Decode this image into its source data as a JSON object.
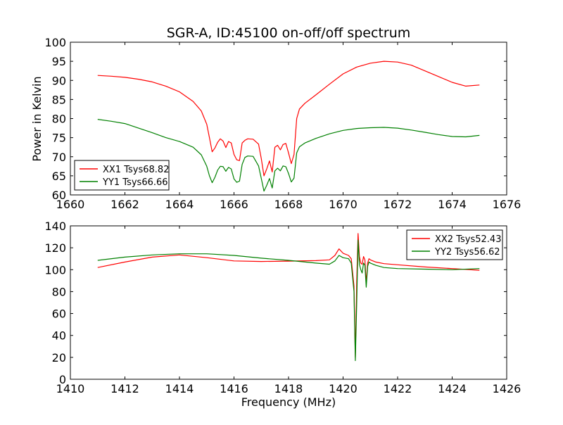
{
  "title": "SGR-A, ID:45100 on-off/off spectrum",
  "ylabel": "Power in Kelvin",
  "xlabel": "Frequency (MHz)",
  "chart_data": [
    {
      "type": "line",
      "title": "SGR-A, ID:45100 on-off/off spectrum",
      "xlabel": "",
      "ylabel": "Power in Kelvin",
      "xlim": [
        1660,
        1676
      ],
      "ylim": [
        60,
        100
      ],
      "xticks": [
        1660,
        1662,
        1664,
        1666,
        1668,
        1670,
        1672,
        1674,
        1676
      ],
      "yticks": [
        60,
        65,
        70,
        75,
        80,
        85,
        90,
        95,
        100
      ],
      "legend": "lower-left",
      "grid": false,
      "series": [
        {
          "name": "XX1 Tsys68.82",
          "color": "#ff0000",
          "x": [
            1661.0,
            1661.5,
            1662.0,
            1662.5,
            1663.0,
            1663.5,
            1664.0,
            1664.5,
            1664.8,
            1665.0,
            1665.1,
            1665.2,
            1665.3,
            1665.4,
            1665.5,
            1665.6,
            1665.7,
            1665.8,
            1665.9,
            1666.0,
            1666.1,
            1666.2,
            1666.3,
            1666.4,
            1666.5,
            1666.7,
            1666.9,
            1667.0,
            1667.1,
            1667.2,
            1667.3,
            1667.4,
            1667.5,
            1667.6,
            1667.7,
            1667.8,
            1667.9,
            1668.0,
            1668.1,
            1668.2,
            1668.3,
            1668.4,
            1668.6,
            1669.0,
            1669.5,
            1670.0,
            1670.5,
            1671.0,
            1671.5,
            1672.0,
            1672.5,
            1673.0,
            1673.5,
            1674.0,
            1674.5,
            1675.0
          ],
          "values": [
            91.3,
            91.1,
            90.8,
            90.3,
            89.6,
            88.5,
            87.0,
            84.5,
            82.0,
            78.5,
            75.0,
            71.3,
            72.3,
            73.8,
            74.7,
            74.1,
            72.4,
            74.0,
            73.6,
            70.6,
            69.2,
            69.0,
            73.6,
            74.3,
            74.7,
            74.6,
            73.3,
            69.5,
            65.0,
            66.8,
            68.9,
            66.0,
            72.5,
            73.0,
            71.8,
            73.2,
            73.5,
            71.0,
            68.2,
            70.6,
            80.0,
            82.5,
            84.0,
            86.2,
            89.0,
            91.7,
            93.5,
            94.5,
            95.0,
            94.8,
            94.0,
            92.5,
            91.0,
            89.5,
            88.5,
            88.8
          ]
        },
        {
          "name": "YY1 Tsys66.66",
          "color": "#008000",
          "x": [
            1661.0,
            1661.5,
            1662.0,
            1662.5,
            1663.0,
            1663.5,
            1664.0,
            1664.5,
            1664.8,
            1665.0,
            1665.1,
            1665.2,
            1665.3,
            1665.4,
            1665.5,
            1665.6,
            1665.7,
            1665.8,
            1665.9,
            1666.0,
            1666.1,
            1666.2,
            1666.3,
            1666.4,
            1666.5,
            1666.7,
            1666.9,
            1667.0,
            1667.1,
            1667.2,
            1667.3,
            1667.4,
            1667.5,
            1667.6,
            1667.7,
            1667.8,
            1667.9,
            1668.0,
            1668.1,
            1668.2,
            1668.3,
            1668.4,
            1668.6,
            1669.0,
            1669.5,
            1670.0,
            1670.5,
            1671.0,
            1671.5,
            1672.0,
            1672.5,
            1673.0,
            1673.5,
            1674.0,
            1674.5,
            1675.0
          ],
          "values": [
            79.8,
            79.3,
            78.7,
            77.5,
            76.3,
            75.0,
            74.0,
            72.5,
            70.5,
            67.5,
            65.0,
            63.2,
            64.6,
            66.5,
            67.5,
            67.4,
            66.2,
            67.2,
            66.8,
            64.2,
            63.3,
            63.6,
            68.0,
            69.8,
            70.2,
            70.1,
            67.6,
            64.3,
            61.0,
            62.5,
            64.3,
            61.8,
            66.3,
            67.0,
            66.3,
            67.6,
            67.4,
            65.6,
            63.4,
            64.4,
            71.0,
            72.6,
            73.6,
            74.8,
            76.0,
            76.9,
            77.4,
            77.6,
            77.7,
            77.5,
            77.0,
            76.4,
            75.8,
            75.3,
            75.2,
            75.6
          ]
        }
      ]
    },
    {
      "type": "line",
      "title": "",
      "xlabel": "Frequency (MHz)",
      "ylabel": "",
      "xlim": [
        1410,
        1426
      ],
      "ylim": [
        0,
        140
      ],
      "xticks": [
        1410,
        1412,
        1414,
        1416,
        1418,
        1420,
        1422,
        1424,
        1426
      ],
      "yticks": [
        0,
        20,
        40,
        60,
        80,
        100,
        120,
        140
      ],
      "legend": "top-right",
      "grid": false,
      "series": [
        {
          "name": "XX2 Tsys52.43",
          "color": "#ff0000",
          "x": [
            1411.0,
            1412.0,
            1413.0,
            1414.0,
            1415.0,
            1416.0,
            1417.0,
            1418.0,
            1419.0,
            1419.5,
            1419.7,
            1419.85,
            1420.0,
            1420.2,
            1420.3,
            1420.4,
            1420.45,
            1420.5,
            1420.55,
            1420.6,
            1420.65,
            1420.7,
            1420.75,
            1420.8,
            1420.85,
            1420.9,
            1420.95,
            1421.0,
            1421.2,
            1421.5,
            1422.0,
            1423.0,
            1424.0,
            1425.0
          ],
          "values": [
            102,
            107,
            111.5,
            113.5,
            111,
            108,
            107.5,
            107.8,
            108.3,
            109,
            113,
            119,
            115,
            113,
            110,
            85,
            20,
            90,
            133,
            112,
            106,
            105,
            112,
            109,
            88,
            106,
            110,
            109,
            107,
            105.5,
            104.5,
            102.5,
            101,
            99.5
          ]
        },
        {
          "name": "YY2 Tsys56.62",
          "color": "#008000",
          "x": [
            1411.0,
            1412.0,
            1413.0,
            1414.0,
            1415.0,
            1416.0,
            1417.0,
            1418.0,
            1419.0,
            1419.5,
            1419.7,
            1419.85,
            1420.0,
            1420.2,
            1420.3,
            1420.4,
            1420.45,
            1420.5,
            1420.55,
            1420.6,
            1420.65,
            1420.7,
            1420.75,
            1420.8,
            1420.85,
            1420.9,
            1420.95,
            1421.0,
            1421.2,
            1421.5,
            1422.0,
            1423.0,
            1424.0,
            1425.0
          ],
          "values": [
            108.5,
            111.5,
            113.5,
            114.5,
            114.5,
            113,
            110.5,
            108.5,
            106,
            105,
            108,
            113,
            111,
            110,
            106,
            80,
            17,
            70,
            127,
            105,
            100,
            97,
            106,
            104,
            84,
            103,
            107,
            106,
            104,
            102,
            101,
            100.5,
            100,
            101
          ]
        }
      ]
    }
  ]
}
